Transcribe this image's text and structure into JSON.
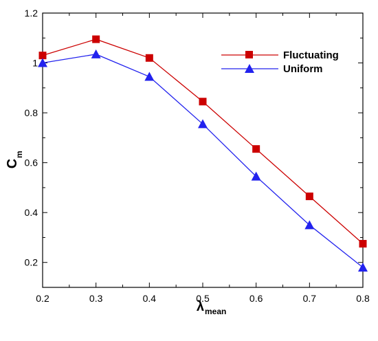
{
  "chart_data": {
    "type": "line",
    "x": [
      0.2,
      0.3,
      0.4,
      0.5,
      0.6,
      0.7,
      0.8
    ],
    "xlim": [
      0.2,
      0.8
    ],
    "ylim": [
      0.1,
      1.2
    ],
    "x_ticks": [
      "0.2",
      "0.3",
      "0.4",
      "0.5",
      "0.6",
      "0.7",
      "0.8"
    ],
    "y_ticks": [
      "0.2",
      "0.4",
      "0.6",
      "0.8",
      "1",
      "1.2"
    ],
    "x_tick_values": [
      0.2,
      0.3,
      0.4,
      0.5,
      0.6,
      0.7,
      0.8
    ],
    "y_tick_values": [
      0.2,
      0.4,
      0.6,
      0.8,
      1.0,
      1.2
    ],
    "xlabel": {
      "main": "λ",
      "sub": "mean"
    },
    "ylabel": {
      "main": "C",
      "sub": "m"
    },
    "grid": false,
    "legend_position": "top-right",
    "series": [
      {
        "name": "Fluctuating",
        "marker": "square",
        "color": "#cc0000",
        "values": [
          1.03,
          1.095,
          1.02,
          0.845,
          0.655,
          0.465,
          0.275
        ]
      },
      {
        "name": "Uniform",
        "marker": "triangle",
        "color": "#2222ee",
        "values": [
          1.0,
          1.035,
          0.945,
          0.755,
          0.545,
          0.35,
          0.18
        ]
      }
    ]
  }
}
